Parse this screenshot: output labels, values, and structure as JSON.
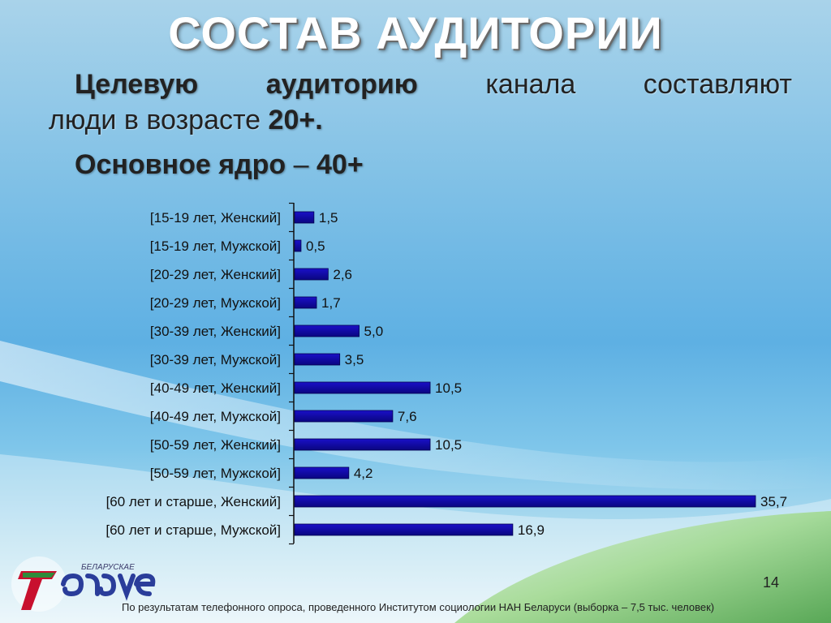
{
  "slide": {
    "title": "СОСТАВ АУДИТОРИИ",
    "lead": {
      "w1": "Целевую",
      "w2": "аудиторию",
      "w3": "канала",
      "w4": "составляют",
      "line2_text": "люди в возрасте ",
      "line2_bold": "20+."
    },
    "core": {
      "text": "Основное ядро",
      "dash": " – ",
      "bold": "40+"
    },
    "page_number": "14",
    "footer": "По результатам телефонного опроса, проведенного  Институтом социологии НАН Беларуси   (выборка – 7,5 тыс. человек)",
    "logo_caption": "БЕЛАРУСКАЕ"
  },
  "chart_data": {
    "type": "bar",
    "orientation": "horizontal",
    "categories": [
      "[15-19 лет, Женский]",
      "[15-19 лет, Мужской]",
      "[20-29 лет, Женский]",
      "[20-29 лет, Мужской]",
      "[30-39 лет, Женский]",
      "[30-39 лет, Мужской]",
      "[40-49 лет, Женский]",
      "[40-49 лет, Мужской]",
      "[50-59 лет, Женский]",
      "[50-59 лет, Мужской]",
      "[60 лет и старше, Женский]",
      "[60 лет и старше, Мужской]"
    ],
    "values": [
      1.5,
      0.5,
      2.6,
      1.7,
      5.0,
      3.5,
      10.5,
      7.6,
      10.5,
      4.2,
      35.7,
      16.9
    ],
    "data_labels": [
      "1,5",
      "0,5",
      "2,6",
      "1,7",
      "5,0",
      "3,5",
      "10,5",
      "7,6",
      "10,5",
      "4,2",
      "35,7",
      "16,9"
    ],
    "xlim": [
      0,
      35.7
    ],
    "grid": false,
    "legend": "none",
    "colors": {
      "bar": "#1a10c8",
      "bar_dark": "#0a0680",
      "axis": "#111111"
    }
  }
}
